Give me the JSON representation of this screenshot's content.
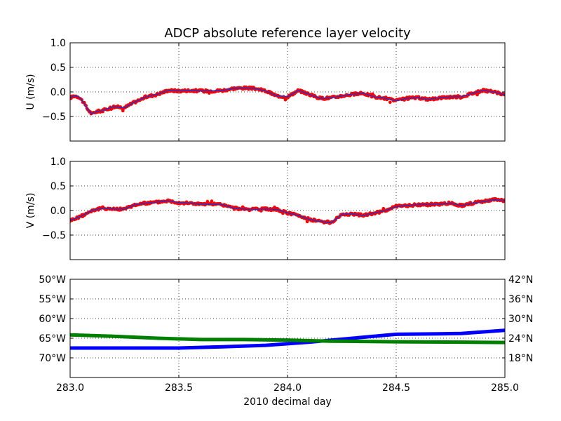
{
  "chart_data": [
    {
      "type": "scatter",
      "title": "ADCP absolute reference layer velocity",
      "xlabel": "",
      "ylabel": "U (m/s)",
      "xlim": [
        283.0,
        285.0
      ],
      "ylim": [
        -1.0,
        1.0
      ],
      "xticks": [
        283.0,
        283.5,
        284.0,
        284.5,
        285.0
      ],
      "yticks": [
        -0.5,
        0.0,
        0.5,
        1.0
      ],
      "ytick_labels": [
        "−0.5",
        "0.0",
        "0.5",
        "1.0"
      ],
      "grid": true,
      "series": [
        {
          "color": "#ff0000",
          "overlay_line_color": "#3030c0",
          "x": [
            283.0,
            283.02,
            283.04,
            283.06,
            283.08,
            283.1,
            283.12,
            283.15,
            283.2,
            283.25,
            283.3,
            283.35,
            283.4,
            283.45,
            283.5,
            283.55,
            283.6,
            283.65,
            283.7,
            283.75,
            283.8,
            283.85,
            283.9,
            283.95,
            284.0,
            284.05,
            284.1,
            284.15,
            284.2,
            284.25,
            284.3,
            284.35,
            284.4,
            284.45,
            284.5,
            284.55,
            284.6,
            284.65,
            284.7,
            284.75,
            284.8,
            284.85,
            284.9,
            284.95,
            285.0
          ],
          "y": [
            -0.12,
            -0.08,
            -0.1,
            -0.2,
            -0.35,
            -0.45,
            -0.4,
            -0.38,
            -0.3,
            -0.32,
            -0.2,
            -0.1,
            -0.05,
            0.03,
            0.02,
            0.03,
            0.02,
            0.02,
            0.03,
            0.07,
            0.08,
            0.07,
            0.02,
            -0.08,
            -0.1,
            0.03,
            -0.05,
            -0.13,
            -0.12,
            -0.08,
            -0.05,
            -0.03,
            -0.1,
            -0.13,
            -0.18,
            -0.13,
            -0.12,
            -0.15,
            -0.12,
            -0.1,
            -0.1,
            -0.03,
            0.03,
            0.0,
            -0.06
          ]
        }
      ]
    },
    {
      "type": "scatter",
      "title": "",
      "xlabel": "",
      "ylabel": "V (m/s)",
      "xlim": [
        283.0,
        285.0
      ],
      "ylim": [
        -1.0,
        1.0
      ],
      "xticks": [
        283.0,
        283.5,
        284.0,
        284.5,
        285.0
      ],
      "yticks": [
        -0.5,
        0.0,
        0.5,
        1.0
      ],
      "ytick_labels": [
        "−0.5",
        "0.0",
        "0.5",
        "1.0"
      ],
      "grid": true,
      "series": [
        {
          "color": "#ff0000",
          "overlay_line_color": "#3030c0",
          "x": [
            283.0,
            283.05,
            283.1,
            283.15,
            283.2,
            283.25,
            283.3,
            283.35,
            283.4,
            283.45,
            283.5,
            283.55,
            283.6,
            283.65,
            283.7,
            283.75,
            283.8,
            283.85,
            283.9,
            283.95,
            284.0,
            284.05,
            284.1,
            284.15,
            284.2,
            284.25,
            284.3,
            284.35,
            284.4,
            284.45,
            284.5,
            284.55,
            284.6,
            284.65,
            284.7,
            284.75,
            284.8,
            284.85,
            284.9,
            284.95,
            285.0
          ],
          "y": [
            -0.2,
            -0.12,
            0.0,
            0.05,
            0.03,
            0.03,
            0.12,
            0.15,
            0.17,
            0.2,
            0.16,
            0.15,
            0.13,
            0.13,
            0.12,
            0.05,
            0.03,
            0.02,
            0.03,
            0.02,
            -0.05,
            -0.1,
            -0.18,
            -0.22,
            -0.25,
            -0.08,
            -0.07,
            -0.1,
            -0.05,
            0.0,
            0.08,
            0.1,
            0.12,
            0.12,
            0.13,
            0.15,
            0.1,
            0.15,
            0.18,
            0.22,
            0.2
          ]
        }
      ]
    },
    {
      "type": "line",
      "title": "",
      "xlabel": "2010 decimal day",
      "ylabel": "",
      "xlim": [
        283.0,
        285.0
      ],
      "ylim": [
        -75,
        -50
      ],
      "xticks": [
        283.0,
        283.5,
        284.0,
        284.5,
        285.0
      ],
      "xtick_labels": [
        "283.0",
        "283.5",
        "284.0",
        "284.5",
        "285.0"
      ],
      "yticks": [
        -70,
        -65,
        -60,
        -55,
        -50
      ],
      "ytick_labels": [
        "70°W",
        "65°W",
        "60°W",
        "55°W",
        "50°W"
      ],
      "ytick_color": "#0000ff",
      "y2lim": [
        12,
        42
      ],
      "y2ticks": [
        18,
        24,
        30,
        36,
        42
      ],
      "y2tick_labels": [
        "18°N",
        "24°N",
        "30°N",
        "36°N",
        "42°N"
      ],
      "y2tick_color": "#008000",
      "grid": true,
      "series": [
        {
          "axis": "left",
          "color": "#0000ff",
          "x": [
            283.0,
            283.5,
            283.7,
            283.9,
            284.1,
            284.3,
            284.5,
            284.7,
            284.8,
            284.9,
            285.0
          ],
          "y": [
            -67.5,
            -67.5,
            -67.2,
            -66.8,
            -66.0,
            -65.0,
            -64.0,
            -63.9,
            -63.8,
            -63.4,
            -63.0
          ]
        },
        {
          "axis": "right",
          "color": "#008000",
          "x": [
            283.0,
            283.2,
            283.4,
            283.6,
            283.8,
            284.0,
            284.2,
            284.5,
            284.8,
            285.0
          ],
          "y": [
            25.0,
            24.6,
            24.0,
            23.6,
            23.6,
            23.4,
            23.1,
            22.9,
            22.8,
            22.7
          ]
        }
      ]
    }
  ]
}
